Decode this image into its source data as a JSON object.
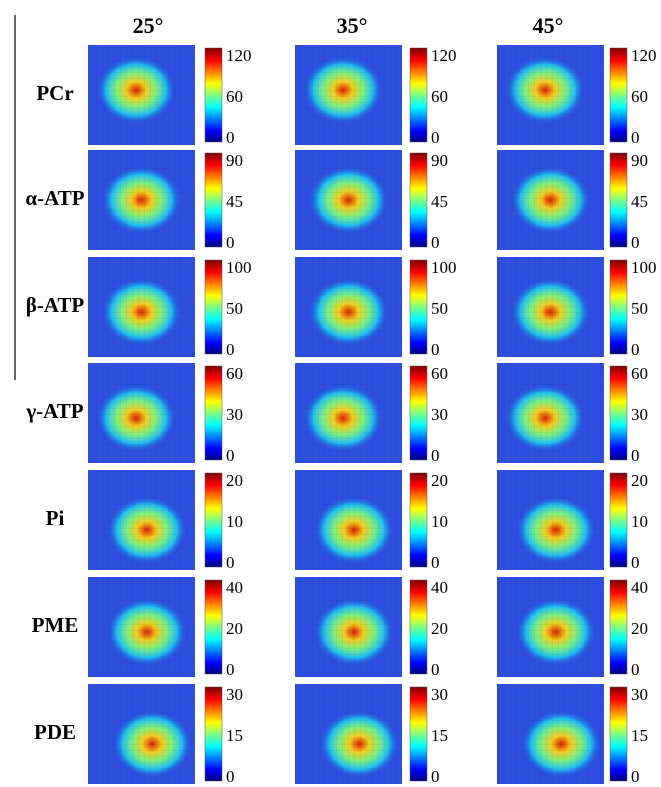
{
  "columns": [
    "25°",
    "35°",
    "45°"
  ],
  "rows": [
    {
      "label": "PCr",
      "ticks": [
        "120",
        "60",
        "0"
      ]
    },
    {
      "label": "α-ATP",
      "ticks": [
        "90",
        "45",
        "0"
      ]
    },
    {
      "label": "β-ATP",
      "ticks": [
        "100",
        "50",
        "0"
      ]
    },
    {
      "label": "γ-ATP",
      "ticks": [
        "60",
        "30",
        "0"
      ]
    },
    {
      "label": "Pi",
      "ticks": [
        "20",
        "10",
        "0"
      ]
    },
    {
      "label": "PME",
      "ticks": [
        "40",
        "20",
        "0"
      ]
    },
    {
      "label": "PDE",
      "ticks": [
        "30",
        "15",
        "0"
      ]
    }
  ]
}
